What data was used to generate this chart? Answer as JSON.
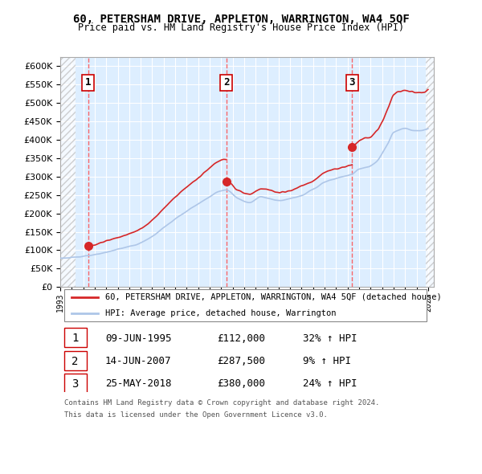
{
  "title1": "60, PETERSHAM DRIVE, APPLETON, WARRINGTON, WA4 5QF",
  "title2": "Price paid vs. HM Land Registry's House Price Index (HPI)",
  "ylabel": "",
  "ylim": [
    0,
    625000
  ],
  "yticks": [
    0,
    50000,
    100000,
    150000,
    200000,
    250000,
    300000,
    350000,
    400000,
    450000,
    500000,
    550000,
    600000
  ],
  "xlim_start": 1993.0,
  "xlim_end": 2025.5,
  "sales": [
    {
      "date": 1995.44,
      "price": 112000,
      "label": "1"
    },
    {
      "date": 2007.45,
      "price": 287500,
      "label": "2"
    },
    {
      "date": 2018.4,
      "price": 380000,
      "label": "3"
    }
  ],
  "legend_line1": "60, PETERSHAM DRIVE, APPLETON, WARRINGTON, WA4 5QF (detached house)",
  "legend_line2": "HPI: Average price, detached house, Warrington",
  "table": [
    {
      "num": "1",
      "date": "09-JUN-1995",
      "price": "£112,000",
      "change": "32% ↑ HPI"
    },
    {
      "num": "2",
      "date": "14-JUN-2007",
      "price": "£287,500",
      "change": "9% ↑ HPI"
    },
    {
      "num": "3",
      "date": "25-MAY-2018",
      "price": "£380,000",
      "change": "24% ↑ HPI"
    }
  ],
  "footer1": "Contains HM Land Registry data © Crown copyright and database right 2024.",
  "footer2": "This data is licensed under the Open Government Licence v3.0.",
  "hpi_color": "#aec6e8",
  "price_color": "#d62728",
  "hatch_color": "#cccccc",
  "bg_color": "#ddeeff",
  "grid_color": "#ffffff"
}
